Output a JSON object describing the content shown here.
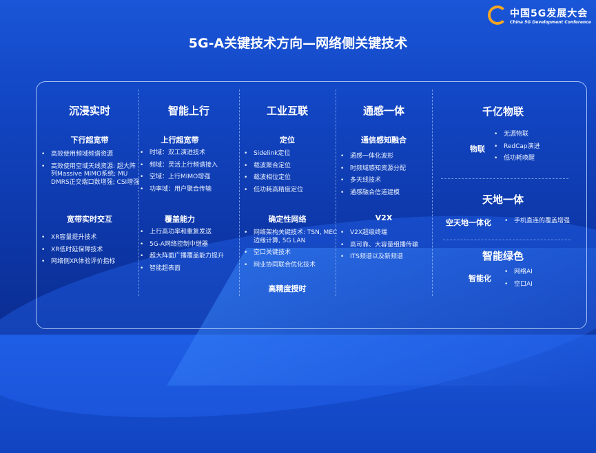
{
  "logo": {
    "title": "中国5G发展大会",
    "subtitle": "China 5G Development Conference"
  },
  "title": "5G-A关键技术方向—网络侧关键技术",
  "columns": [
    {
      "title": "沉浸实时",
      "sections": [
        {
          "title": "下行超宽带",
          "items": [
            "高效使用频域频谱资源",
            "高效使用空域天线资源: 超大阵列Massive MIMO系统; MU DMRS正交端口数增强; CSI增强"
          ]
        },
        {
          "title": "宽带实时交互",
          "items": [
            "XR容量提升技术",
            "XR低时延保障技术",
            "网络侧XR体验评价指标"
          ]
        }
      ]
    },
    {
      "title": "智能上行",
      "sections": [
        {
          "title": "上行超宽带",
          "items": [
            "时域：双工演进技术",
            "频域：灵活上行频谱接入",
            "空域：上行MIMO增强",
            "功率域：用户聚合传输"
          ]
        },
        {
          "title": "覆盖能力",
          "items": [
            "上行高功率和重复发送",
            "5G-A网络控制中继器",
            "超大阵面广播覆盖能力提升",
            "智能超表面"
          ]
        }
      ]
    },
    {
      "title": "工业互联",
      "sections": [
        {
          "title": "定位",
          "items": [
            "Sidelink定位",
            "载波聚合定位",
            "载波相位定位",
            "低功耗高精度定位"
          ]
        },
        {
          "title": "确定性网络",
          "items": [
            "网络架构关键技术: TSN, MEC边缘计算, 5G LAN",
            "空口关键技术",
            "网业协同联合优化技术"
          ]
        },
        {
          "title": "高精度授时",
          "items": []
        }
      ]
    },
    {
      "title": "通感一体",
      "sections": [
        {
          "title": "通信感知融合",
          "items": [
            "通感一体化波形",
            "时频域感知资源分配",
            "多天线技术",
            "通感融合信道建模"
          ]
        },
        {
          "title": "V2X",
          "items": [
            "V2X超级终端",
            "高可靠、大容量组播传输",
            "ITS频谱以及新频谱"
          ]
        }
      ]
    },
    {
      "title": "千亿物联",
      "sections": [
        {
          "title": "物联",
          "items": [
            "无源物联",
            "RedCap演进",
            "低功耗唤醒"
          ]
        }
      ]
    },
    {
      "title": "天地一体",
      "sections": [
        {
          "title": "空天地一体化",
          "items": [
            "手机直连的覆盖增强"
          ]
        }
      ]
    },
    {
      "title": "智能绿色",
      "sections": [
        {
          "title": "智能化",
          "items": [
            "网络AI",
            "空口AI"
          ]
        }
      ]
    }
  ]
}
